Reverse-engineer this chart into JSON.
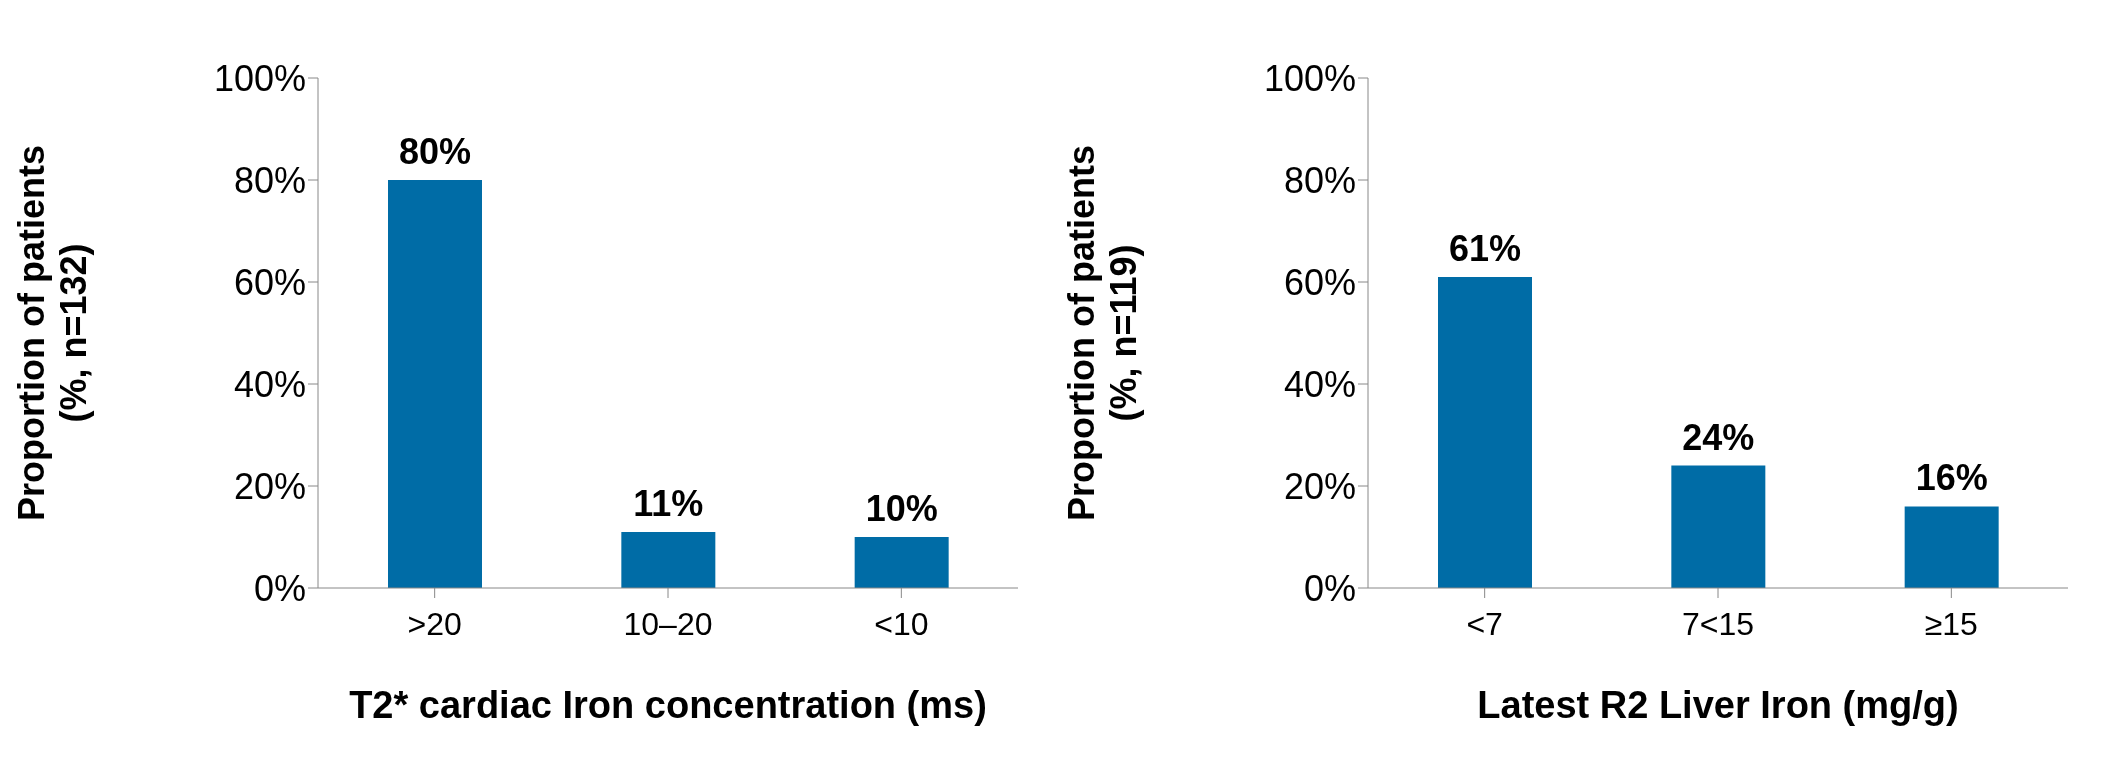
{
  "chart_data": [
    {
      "type": "bar",
      "categories": [
        ">20",
        "10–20",
        "<10"
      ],
      "values": [
        80,
        11,
        10
      ],
      "value_labels": [
        "80%",
        "11%",
        "10%"
      ],
      "color": "#006ca6",
      "ylim": [
        0,
        100
      ],
      "yticks": [
        {
          "value": 0,
          "label": "0%"
        },
        {
          "value": 20,
          "label": "20%"
        },
        {
          "value": 40,
          "label": "40%"
        },
        {
          "value": 60,
          "label": "60%"
        },
        {
          "value": 80,
          "label": "80%"
        },
        {
          "value": 100,
          "label": "100%"
        }
      ],
      "ylabel": "Proportion of patients\n(%, n=132)",
      "xlabel": "T2* cardiac Iron concentration (ms)"
    },
    {
      "type": "bar",
      "categories": [
        "<7",
        "7<15",
        "≥15"
      ],
      "values": [
        61,
        24,
        16
      ],
      "value_labels": [
        "61%",
        "24%",
        "16%"
      ],
      "color": "#006ca6",
      "ylim": [
        0,
        100
      ],
      "yticks": [
        {
          "value": 0,
          "label": "0%"
        },
        {
          "value": 20,
          "label": "20%"
        },
        {
          "value": 40,
          "label": "40%"
        },
        {
          "value": 60,
          "label": "60%"
        },
        {
          "value": 80,
          "label": "80%"
        },
        {
          "value": 100,
          "label": "100%"
        }
      ],
      "ylabel": "Proportion of patients\n(%, n=119)",
      "xlabel": "Latest R2 Liver Iron (mg/g)"
    }
  ]
}
